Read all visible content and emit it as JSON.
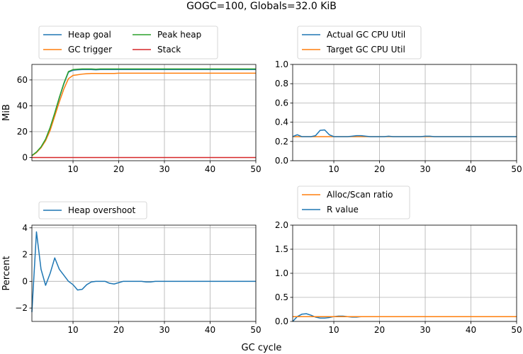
{
  "figure": {
    "title": "GOGC=100, Globals=32.0 KiB",
    "xlabel": "GC cycle"
  },
  "chart_data": [
    {
      "type": "line",
      "id": "heap",
      "xlabel": "",
      "ylabel": "MiB",
      "xlim": [
        1,
        50
      ],
      "ylim": [
        -2.5,
        72
      ],
      "xticks": [
        10,
        20,
        30,
        40,
        50
      ],
      "yticks": [
        0,
        20,
        40,
        60
      ],
      "grid": true,
      "legend": {
        "placement": "above-left",
        "columns": 2
      },
      "series": [
        {
          "name": "Heap goal",
          "color": "#1f77b4",
          "x": [
            1,
            2,
            3,
            4,
            5,
            6,
            7,
            8,
            9,
            10,
            11,
            12,
            13,
            14,
            15,
            16,
            17,
            18,
            19,
            20,
            21,
            22,
            23,
            24,
            25,
            26,
            27,
            28,
            29,
            30,
            31,
            32,
            33,
            34,
            35,
            36,
            37,
            38,
            39,
            40,
            41,
            42,
            43,
            44,
            45,
            46,
            47,
            48,
            49,
            50
          ],
          "y": [
            1.5,
            4,
            8,
            14,
            23,
            34,
            46,
            57,
            66,
            67.5,
            67.8,
            68,
            68,
            68,
            67.8,
            68,
            68,
            68,
            68,
            68,
            68,
            68,
            68,
            68,
            68,
            68,
            68,
            68,
            68,
            68,
            68,
            68,
            68,
            68,
            68,
            68,
            68,
            68,
            68,
            68,
            68,
            68,
            68,
            68,
            68,
            68,
            68,
            68,
            68,
            68
          ]
        },
        {
          "name": "GC trigger",
          "color": "#ff7f0e",
          "x": [
            1,
            2,
            3,
            4,
            5,
            6,
            7,
            8,
            9,
            10,
            11,
            12,
            13,
            14,
            15,
            16,
            17,
            18,
            19,
            20,
            21,
            22,
            23,
            24,
            25,
            26,
            27,
            28,
            29,
            30,
            31,
            32,
            33,
            34,
            35,
            36,
            37,
            38,
            39,
            40,
            41,
            42,
            43,
            44,
            45,
            46,
            47,
            48,
            49,
            50
          ],
          "y": [
            1.3,
            3.8,
            7.5,
            13,
            21,
            32,
            43,
            53,
            61,
            63.5,
            64,
            64.5,
            64.8,
            65,
            65,
            65,
            65,
            65,
            65,
            65.2,
            65.2,
            65.2,
            65.2,
            65.2,
            65.2,
            65.2,
            65.2,
            65.2,
            65.2,
            65.2,
            65.2,
            65.2,
            65.2,
            65.2,
            65.2,
            65.2,
            65.2,
            65.2,
            65.2,
            65.2,
            65.2,
            65.2,
            65.2,
            65.2,
            65.2,
            65.2,
            65.2,
            65.2,
            65.2,
            65.2
          ]
        },
        {
          "name": "Peak heap",
          "color": "#2ca02c",
          "x": [
            1,
            2,
            3,
            4,
            5,
            6,
            7,
            8,
            9,
            10,
            11,
            12,
            13,
            14,
            15,
            16,
            17,
            18,
            19,
            20,
            21,
            22,
            23,
            24,
            25,
            26,
            27,
            28,
            29,
            30,
            31,
            32,
            33,
            34,
            35,
            36,
            37,
            38,
            39,
            40,
            41,
            42,
            43,
            44,
            45,
            46,
            47,
            48,
            49,
            50
          ],
          "y": [
            1.5,
            4.2,
            8.2,
            14.2,
            23.3,
            34.5,
            46.5,
            57.5,
            66.5,
            68,
            68.3,
            68.5,
            68.5,
            68.5,
            68.3,
            68.5,
            68.5,
            68.5,
            68.5,
            68.5,
            68.5,
            68.5,
            68.5,
            68.5,
            68.5,
            68.5,
            68.5,
            68.5,
            68.5,
            68.5,
            68.5,
            68.5,
            68.5,
            68.5,
            68.5,
            68.5,
            68.5,
            68.5,
            68.5,
            68.5,
            68.5,
            68.5,
            68.5,
            68.5,
            68.5,
            68.5,
            68.5,
            68.5,
            68.5,
            68.5
          ]
        },
        {
          "name": "Stack",
          "color": "#d62728",
          "x": [
            1,
            50
          ],
          "y": [
            0,
            0
          ]
        }
      ]
    },
    {
      "type": "line",
      "id": "cpu",
      "xlabel": "",
      "ylabel": "",
      "xlim": [
        1,
        50
      ],
      "ylim": [
        0,
        1.0
      ],
      "xticks": [
        10,
        20,
        30,
        40,
        50
      ],
      "yticks": [
        0.0,
        0.2,
        0.4,
        0.6,
        0.8,
        1.0
      ],
      "ytick_labels": [
        "0.0",
        "0.2",
        "0.4",
        "0.6",
        "0.8",
        "1.0"
      ],
      "grid": true,
      "legend": {
        "placement": "above-left",
        "columns": 1
      },
      "series": [
        {
          "name": "Target GC CPU Util",
          "color": "#ff7f0e",
          "x": [
            1,
            50
          ],
          "y": [
            0.25,
            0.25
          ]
        },
        {
          "name": "Actual GC CPU Util",
          "color": "#1f77b4",
          "x": [
            1,
            2,
            3,
            4,
            5,
            6,
            7,
            8,
            9,
            10,
            11,
            12,
            13,
            14,
            15,
            16,
            17,
            18,
            19,
            20,
            21,
            22,
            23,
            24,
            25,
            26,
            27,
            28,
            29,
            30,
            31,
            32,
            33,
            34,
            35,
            36,
            37,
            38,
            39,
            40,
            41,
            42,
            43,
            44,
            45,
            46,
            47,
            48,
            49,
            50
          ],
          "y": [
            0.25,
            0.27,
            0.25,
            0.25,
            0.25,
            0.26,
            0.315,
            0.32,
            0.27,
            0.25,
            0.25,
            0.25,
            0.25,
            0.255,
            0.26,
            0.26,
            0.255,
            0.25,
            0.25,
            0.25,
            0.25,
            0.255,
            0.25,
            0.25,
            0.25,
            0.25,
            0.25,
            0.25,
            0.25,
            0.255,
            0.255,
            0.25,
            0.25,
            0.25,
            0.25,
            0.25,
            0.25,
            0.25,
            0.25,
            0.25,
            0.25,
            0.25,
            0.25,
            0.25,
            0.25,
            0.25,
            0.25,
            0.25,
            0.25,
            0.25
          ]
        }
      ],
      "legend_order": [
        "Actual GC CPU Util",
        "Target GC CPU Util"
      ]
    },
    {
      "type": "line",
      "id": "overshoot",
      "xlabel": "",
      "ylabel": "Percent",
      "xlim": [
        1,
        50
      ],
      "ylim": [
        -3,
        4.2
      ],
      "xticks": [
        10,
        20,
        30,
        40,
        50
      ],
      "yticks": [
        -2,
        0,
        2,
        4
      ],
      "grid": true,
      "legend": {
        "placement": "above-left",
        "columns": 1
      },
      "series": [
        {
          "name": "Heap overshoot",
          "color": "#1f77b4",
          "x": [
            1,
            2,
            3,
            4,
            5,
            6,
            7,
            8,
            9,
            10,
            11,
            12,
            13,
            14,
            15,
            16,
            17,
            18,
            19,
            20,
            21,
            22,
            23,
            24,
            25,
            26,
            27,
            28,
            29,
            30,
            31,
            32,
            33,
            34,
            35,
            36,
            37,
            38,
            39,
            40,
            41,
            42,
            43,
            44,
            45,
            46,
            47,
            48,
            49,
            50
          ],
          "y": [
            -2.3,
            3.7,
            0.9,
            -0.3,
            0.6,
            1.75,
            0.9,
            0.45,
            0,
            -0.25,
            -0.65,
            -0.6,
            -0.25,
            -0.05,
            0,
            0,
            0,
            -0.15,
            -0.2,
            -0.1,
            0,
            0,
            0,
            0,
            0,
            -0.05,
            -0.05,
            0,
            0,
            0,
            0,
            0,
            0,
            0,
            0,
            0,
            0,
            0,
            0,
            0,
            0,
            0,
            0,
            0,
            0,
            0,
            0,
            0,
            0,
            0
          ]
        }
      ]
    },
    {
      "type": "line",
      "id": "ratio",
      "xlabel": "",
      "ylabel": "",
      "xlim": [
        1,
        50
      ],
      "ylim": [
        0,
        2.0
      ],
      "xticks": [
        10,
        20,
        30,
        40,
        50
      ],
      "yticks": [
        0.0,
        0.5,
        1.0,
        1.5,
        2.0
      ],
      "ytick_labels": [
        "0.0",
        "0.5",
        "1.0",
        "1.5",
        "2.0"
      ],
      "grid": true,
      "legend": {
        "placement": "above-left",
        "columns": 1
      },
      "series": [
        {
          "name": "R value",
          "color": "#1f77b4",
          "x": [
            1,
            2,
            3,
            4,
            5,
            6,
            7,
            8,
            9,
            10,
            11,
            12,
            13,
            14,
            15,
            16,
            17,
            18,
            19,
            20,
            21,
            22,
            23,
            24,
            25,
            26,
            27,
            28,
            29,
            30,
            31,
            32,
            33,
            34,
            35,
            36,
            37,
            38,
            39,
            40,
            41,
            42,
            43,
            44,
            45,
            46,
            47,
            48,
            49,
            50
          ],
          "y": [
            0.0,
            0.1,
            0.15,
            0.16,
            0.13,
            0.09,
            0.07,
            0.07,
            0.08,
            0.1,
            0.11,
            0.11,
            0.1,
            0.09,
            0.09,
            0.1,
            0.1,
            0.1,
            0.1,
            0.1,
            0.1,
            0.1,
            0.1,
            0.1,
            0.1,
            0.1,
            0.1,
            0.1,
            0.1,
            0.1,
            0.1,
            0.1,
            0.1,
            0.1,
            0.1,
            0.1,
            0.1,
            0.1,
            0.1,
            0.1,
            0.1,
            0.1,
            0.1,
            0.1,
            0.1,
            0.1,
            0.1,
            0.1,
            0.1,
            0.1
          ]
        },
        {
          "name": "Alloc/Scan ratio",
          "color": "#ff7f0e",
          "x": [
            1,
            2,
            3,
            4,
            5,
            6,
            7,
            8,
            9,
            10,
            11,
            12,
            13,
            14,
            15,
            16,
            17,
            18,
            19,
            20,
            21,
            22,
            23,
            24,
            25,
            26,
            27,
            28,
            29,
            30,
            31,
            32,
            33,
            34,
            35,
            36,
            37,
            38,
            39,
            40,
            41,
            42,
            43,
            44,
            45,
            46,
            47,
            48,
            49,
            50
          ],
          "y": [
            0.1,
            0.1,
            0.1,
            0.1,
            0.1,
            0.1,
            0.1,
            0.1,
            0.1,
            0.1,
            0.1,
            0.1,
            0.1,
            0.1,
            0.1,
            0.1,
            0.1,
            0.1,
            0.1,
            0.1,
            0.1,
            0.1,
            0.1,
            0.1,
            0.1,
            0.1,
            0.1,
            0.1,
            0.1,
            0.1,
            0.1,
            0.1,
            0.1,
            0.1,
            0.1,
            0.1,
            0.1,
            0.1,
            0.1,
            0.1,
            0.1,
            0.1,
            0.1,
            0.1,
            0.1,
            0.1,
            0.1,
            0.1,
            0.1,
            0.1
          ]
        }
      ],
      "legend_order": [
        "Alloc/Scan ratio",
        "R value"
      ]
    }
  ]
}
